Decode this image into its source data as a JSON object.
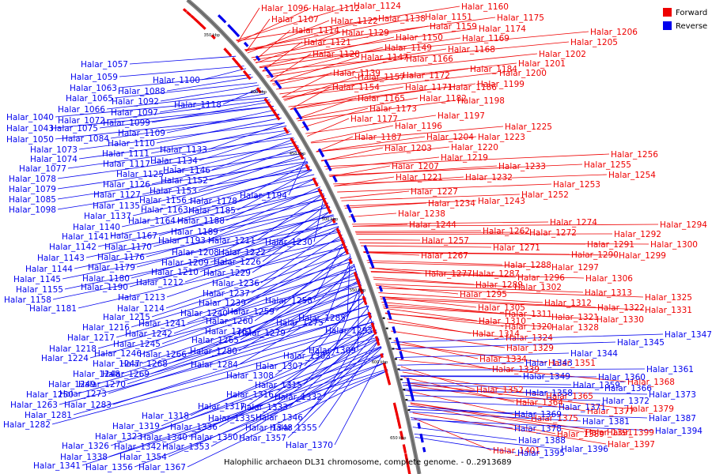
{
  "caption": "Halophilic archaeon DL31 chromosome, complete genome. - 0..2913689",
  "legend": [
    {
      "label": "Forward",
      "color": "#ee0000"
    },
    {
      "label": "Reverse",
      "color": "#0000ee"
    }
  ],
  "ticks": [
    "350 kbp",
    "400 kbp",
    "450 kbp",
    "500 kbp",
    "550 kbp",
    "600 kbp",
    "650 kbp"
  ],
  "colors": {
    "forward": "#ee0000",
    "reverse": "#0000ee",
    "backbone": "#7f7f7f"
  },
  "forward_labels": [
    "Halar_1096",
    "Halar_1112",
    "Halar_1124",
    "Halar_1138",
    "Halar_1151",
    "Halar_1160",
    "Halar_1175",
    "Halar_1107",
    "Halar_1122",
    "Halar_1159",
    "Halar_1174",
    "Halar_1114",
    "Halar_1129",
    "Halar_1150",
    "Halar_1169",
    "Halar_1206",
    "Halar_1121",
    "Halar_1149",
    "Halar_1168",
    "Halar_1205",
    "Halar_1128",
    "Halar_1147",
    "Halar_1166",
    "Halar_1202",
    "Halar_1201",
    "Halar_1184",
    "Halar_1139",
    "Halar_1157",
    "Halar_1172",
    "Halar_1200",
    "Halar_1154",
    "Halar_1171",
    "Halar_1186",
    "Halar_1199",
    "Halar_1165",
    "Halar_1182",
    "Halar_1198",
    "Halar_1173",
    "Halar_1197",
    "Halar_1177",
    "Halar_1196",
    "Halar_1225",
    "Halar_1187",
    "Halar_1204",
    "Halar_1223",
    "Halar_1203",
    "Halar_1220",
    "Halar_1219",
    "Halar_1256",
    "Halar_1207",
    "Halar_1233",
    "Halar_1255",
    "Halar_1221",
    "Halar_1232",
    "Halar_1254",
    "Halar_1227",
    "Halar_1253",
    "Halar_1234",
    "Halar_1243",
    "Halar_1252",
    "Halar_1238",
    "Halar_1274",
    "Halar_1244",
    "Halar_1262",
    "Halar_1272",
    "Halar_1294",
    "Halar_1257",
    "Halar_1292",
    "Halar_1271",
    "Halar_1291",
    "Halar_1300",
    "Halar_1267",
    "Halar_1290",
    "Halar_1299",
    "Halar_1288",
    "Halar_1297",
    "Halar_1277",
    "Halar_1287",
    "Halar_1296",
    "Halar_1306",
    "Halar_1289",
    "Halar_1302",
    "Halar_1295",
    "Halar_1313",
    "Halar_1325",
    "Halar_1312",
    "Halar_1322",
    "Halar_1331",
    "Halar_1305",
    "Halar_1311",
    "Halar_1321",
    "Halar_1330",
    "Halar_1310",
    "Halar_1320",
    "Halar_1328",
    "Halar_1314",
    "Halar_1324",
    "Halar_1329",
    "Halar_1334",
    "Halar_1351",
    "Halar_1339",
    "Halar_1368",
    "Halar_1379",
    "Halar_1352",
    "Halar_1365",
    "Halar_1377",
    "Halar_1364",
    "Halar_1375",
    "Halar_1389",
    "Halar_1391",
    "Halar_1397",
    "Halar_1399",
    "Halar_1401"
  ],
  "reverse_labels": [
    "Halar_1057",
    "Halar_1059",
    "Halar_1063",
    "Halar_1065",
    "Halar_1066",
    "Halar_1040",
    "Halar_1072",
    "Halar_1043",
    "Halar_1075",
    "Halar_1050",
    "Halar_1084",
    "Halar_1073",
    "Halar_1074",
    "Halar_1077",
    "Halar_1078",
    "Halar_1079",
    "Halar_1085",
    "Halar_1098",
    "Halar_1100",
    "Halar_1088",
    "Halar_1092",
    "Halar_1097",
    "Halar_1099",
    "Halar_1109",
    "Halar_1110",
    "Halar_1111",
    "Halar_1117",
    "Halar_1125",
    "Halar_1126",
    "Halar_1127",
    "Halar_1135",
    "Halar_1137",
    "Halar_1140",
    "Halar_1141",
    "Halar_1142",
    "Halar_1143",
    "Halar_1144",
    "Halar_1145",
    "Halar_1155",
    "Halar_1158",
    "Halar_1181",
    "Halar_1118",
    "Halar_1133",
    "Halar_1134",
    "Halar_1146",
    "Halar_1152",
    "Halar_1153",
    "Halar_1156",
    "Halar_1163",
    "Halar_1164",
    "Halar_1167",
    "Halar_1170",
    "Halar_1176",
    "Halar_1179",
    "Halar_1180",
    "Halar_1190",
    "Halar_1178",
    "Halar_1185",
    "Halar_1188",
    "Halar_1189",
    "Halar_1194",
    "Halar_1193",
    "Halar_1211",
    "Halar_1208",
    "Halar_1222",
    "Halar_1209",
    "Halar_1226",
    "Halar_1210",
    "Halar_1229",
    "Halar_1212",
    "Halar_1236",
    "Halar_1213",
    "Halar_1237",
    "Halar_1214",
    "Halar_1239",
    "Halar_1215",
    "Halar_1240",
    "Halar_1216",
    "Halar_1241",
    "Halar_1217",
    "Halar_1242",
    "Halar_1218",
    "Halar_1245",
    "Halar_1224",
    "Halar_1246",
    "Halar_1247",
    "Halar_1266",
    "Halar_1248",
    "Halar_1268",
    "Halar_1249",
    "Halar_1269",
    "Halar_1250",
    "Halar_1270",
    "Halar_1263",
    "Halar_1273",
    "Halar_1281",
    "Halar_1283",
    "Halar_1282",
    "Halar_1230",
    "Halar_1258",
    "Halar_1259",
    "Halar_1260",
    "Halar_1261",
    "Halar_1265",
    "Halar_1275",
    "Halar_1279",
    "Halar_1280",
    "Halar_1284",
    "Halar_1285",
    "Halar_1293",
    "Halar_1303",
    "Halar_1309",
    "Halar_1307",
    "Halar_1308",
    "Halar_1315",
    "Halar_1316",
    "Halar_1332",
    "Halar_1317",
    "Halar_1333",
    "Halar_1318",
    "Halar_1335",
    "Halar_1346",
    "Halar_1319",
    "Halar_1336",
    "Halar_1348",
    "Halar_1355",
    "Halar_1323",
    "Halar_1340",
    "Halar_1350",
    "Halar_1357",
    "Halar_1326",
    "Halar_1342",
    "Halar_1353",
    "Halar_1370",
    "Halar_1338",
    "Halar_1354",
    "Halar_1341",
    "Halar_1356",
    "Halar_1367",
    "Halar_1344",
    "Halar_1345",
    "Halar_1347",
    "Halar_1343",
    "Halar_1349",
    "Halar_1360",
    "Halar_1361",
    "Halar_1358",
    "Halar_1359",
    "Halar_1366",
    "Halar_1373",
    "Halar_1369",
    "Halar_1371",
    "Halar_1372",
    "Halar_1381",
    "Halar_1387",
    "Halar_1378",
    "Halar_1394",
    "Halar_1388",
    "Halar_1395",
    "Halar_1396"
  ]
}
